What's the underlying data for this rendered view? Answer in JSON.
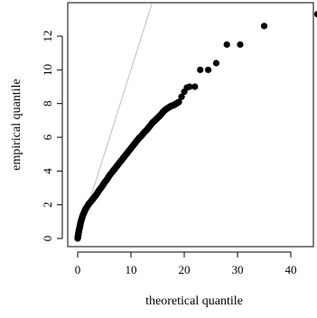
{
  "chart_data": {
    "type": "scatter",
    "title": "",
    "xlabel": "theoretical quantile",
    "ylabel": "empirical quantile",
    "xlim": [
      0,
      45
    ],
    "ylim": [
      0,
      13.5
    ],
    "x_ticks": [
      0,
      10,
      20,
      30,
      40
    ],
    "y_ticks": [
      0,
      2,
      4,
      6,
      8,
      10,
      12
    ],
    "grid": false,
    "reference_line": {
      "slope": 1,
      "intercept": 0,
      "color": "#bebebe"
    },
    "point_color": "#000000",
    "points": [
      [
        0.0,
        0.0
      ],
      [
        0.05,
        0.1
      ],
      [
        0.1,
        0.2
      ],
      [
        0.15,
        0.3
      ],
      [
        0.2,
        0.4
      ],
      [
        0.3,
        0.55
      ],
      [
        0.4,
        0.7
      ],
      [
        0.5,
        0.85
      ],
      [
        0.6,
        1.0
      ],
      [
        0.8,
        1.2
      ],
      [
        1.0,
        1.4
      ],
      [
        1.2,
        1.55
      ],
      [
        1.5,
        1.75
      ],
      [
        1.8,
        1.9
      ],
      [
        2.1,
        2.05
      ],
      [
        2.5,
        2.2
      ],
      [
        3.0,
        2.4
      ],
      [
        3.5,
        2.6
      ],
      [
        4.0,
        2.85
      ],
      [
        4.5,
        3.05
      ],
      [
        5.0,
        3.3
      ],
      [
        5.5,
        3.5
      ],
      [
        6.0,
        3.75
      ],
      [
        6.5,
        3.95
      ],
      [
        7.0,
        4.15
      ],
      [
        7.5,
        4.35
      ],
      [
        8.0,
        4.55
      ],
      [
        8.5,
        4.75
      ],
      [
        9.0,
        4.95
      ],
      [
        9.5,
        5.15
      ],
      [
        10.0,
        5.35
      ],
      [
        10.5,
        5.55
      ],
      [
        11.0,
        5.75
      ],
      [
        11.5,
        5.95
      ],
      [
        12.0,
        6.1
      ],
      [
        12.5,
        6.3
      ],
      [
        13.0,
        6.45
      ],
      [
        13.5,
        6.65
      ],
      [
        14.0,
        6.85
      ],
      [
        14.5,
        7.0
      ],
      [
        15.0,
        7.15
      ],
      [
        15.5,
        7.3
      ],
      [
        16.0,
        7.5
      ],
      [
        16.5,
        7.65
      ],
      [
        17.0,
        7.75
      ],
      [
        17.5,
        7.85
      ],
      [
        18.0,
        7.9
      ],
      [
        18.5,
        8.0
      ],
      [
        19.0,
        8.1
      ],
      [
        19.5,
        8.4
      ],
      [
        20.0,
        8.7
      ],
      [
        20.5,
        8.95
      ],
      [
        21.0,
        9.0
      ],
      [
        22.0,
        9.0
      ],
      [
        23.0,
        10.0
      ],
      [
        24.5,
        10.0
      ],
      [
        26.0,
        10.4
      ],
      [
        28.0,
        11.5
      ],
      [
        30.5,
        11.5
      ],
      [
        35.0,
        12.6
      ],
      [
        45.0,
        13.3
      ]
    ]
  }
}
